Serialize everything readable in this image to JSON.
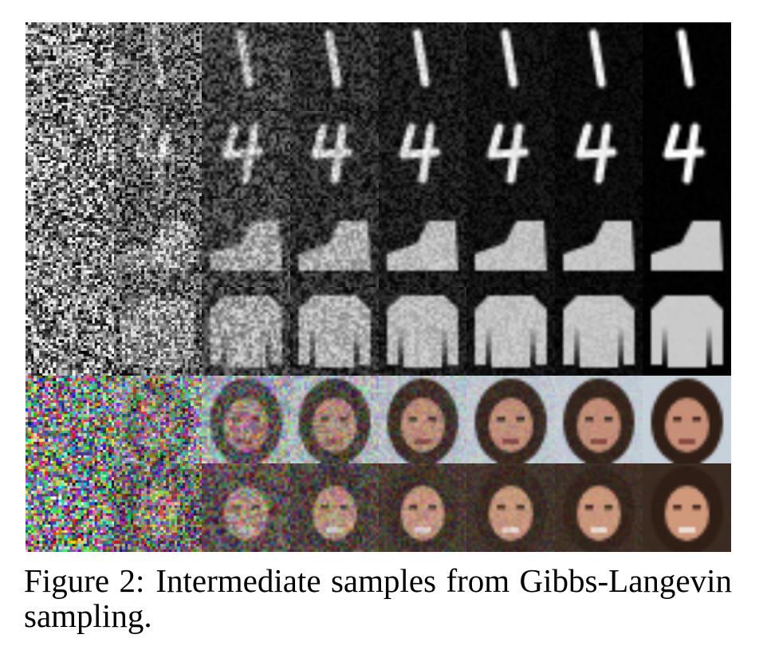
{
  "figure": {
    "grid": {
      "rows": 6,
      "columns": 8
    },
    "caption": {
      "label": "Figure 2:",
      "text": "Intermediate samples from Gibbs-Langevin sampling."
    }
  }
}
